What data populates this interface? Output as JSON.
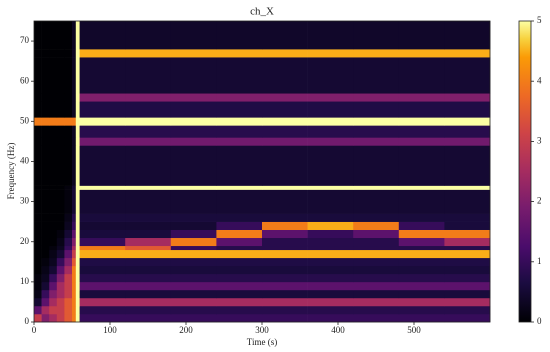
{
  "chart_data": {
    "type": "heatmap",
    "title": "ch_X",
    "xlabel": "Time (s)",
    "ylabel": "Frequency (Hz)",
    "colormap": "inferno",
    "x": [
      0,
      10,
      20,
      30,
      40,
      50,
      55,
      60,
      120,
      180,
      240,
      300,
      360,
      420,
      480,
      540,
      600
    ],
    "y": [
      0,
      2,
      4,
      6,
      8,
      10,
      12,
      14,
      16,
      18,
      19,
      21,
      23,
      25,
      27,
      33,
      34,
      44,
      46,
      49,
      51,
      55,
      57,
      66,
      68,
      75
    ],
    "values": [
      [
        3,
        2,
        2.5,
        3,
        3.5,
        4,
        5,
        1,
        1,
        1,
        1,
        1,
        1,
        1,
        1,
        1
      ],
      [
        1.5,
        2.5,
        3,
        3,
        3.5,
        4,
        5,
        0.8,
        0.8,
        0.8,
        0.8,
        0.8,
        0.8,
        0.8,
        0.8,
        0.8
      ],
      [
        0.5,
        1.5,
        2.5,
        3,
        3.5,
        4,
        5,
        2.5,
        2.5,
        2.5,
        2.5,
        2.5,
        2.5,
        2.5,
        2.5,
        2.5
      ],
      [
        0.2,
        1,
        2,
        2.5,
        3,
        4,
        5,
        0.6,
        0.6,
        0.6,
        0.6,
        0.6,
        0.6,
        0.6,
        0.6,
        0.6
      ],
      [
        0.1,
        0.5,
        1.5,
        2.5,
        3,
        4,
        5,
        1.5,
        1.5,
        1.5,
        1.5,
        1.5,
        1.5,
        1.5,
        1.5,
        1.5
      ],
      [
        0.1,
        0.3,
        1,
        2,
        3,
        4,
        5,
        0.8,
        0.8,
        0.8,
        0.8,
        0.8,
        0.8,
        0.8,
        0.8,
        0.8
      ],
      [
        0,
        0.2,
        0.5,
        1.5,
        2.5,
        4,
        5,
        0.6,
        0.6,
        0.6,
        0.6,
        0.6,
        0.6,
        0.6,
        0.6,
        0.6
      ],
      [
        0,
        0.1,
        0.3,
        1,
        2,
        3.5,
        5,
        0.7,
        0.7,
        0.7,
        0.7,
        0.7,
        0.7,
        0.7,
        0.7,
        0.7
      ],
      [
        0,
        0,
        0.2,
        0.5,
        1.5,
        3,
        5,
        4.5,
        4.5,
        4.5,
        4.5,
        4.5,
        4.5,
        4.5,
        4.5,
        4.5
      ],
      [
        0,
        0,
        0.1,
        0.3,
        1,
        2.5,
        5,
        4,
        3.5,
        1,
        0.8,
        0.8,
        0.8,
        0.8,
        0.8,
        0.8
      ],
      [
        0,
        0,
        0,
        0.2,
        0.8,
        2,
        5,
        1,
        2.5,
        4,
        1.5,
        0.8,
        0.8,
        0.8,
        1.5,
        2.5
      ],
      [
        0,
        0,
        0,
        0.1,
        0.5,
        1.5,
        5,
        0.6,
        0.6,
        1,
        4,
        1.5,
        1,
        1.5,
        4,
        4
      ],
      [
        0,
        0,
        0,
        0,
        0.3,
        1,
        5,
        0.5,
        0.5,
        0.5,
        1,
        4,
        4.5,
        4,
        1,
        0.6
      ],
      [
        0,
        0,
        0,
        0,
        0.2,
        0.8,
        5,
        0.6,
        0.6,
        0.6,
        0.6,
        0.6,
        0.6,
        0.6,
        0.6,
        0.6
      ],
      [
        0,
        0,
        0,
        0,
        0.1,
        0.5,
        5,
        0.5,
        0.5,
        0.5,
        0.5,
        0.5,
        0.5,
        0.5,
        0.5,
        0.5
      ],
      [
        0,
        0,
        0,
        0,
        0.1,
        0.5,
        5,
        5,
        5,
        5,
        5,
        5,
        5,
        5,
        5,
        5
      ],
      [
        0,
        0,
        0,
        0,
        0,
        0.3,
        5,
        0.5,
        0.5,
        0.5,
        0.5,
        0.5,
        0.5,
        0.5,
        0.5,
        0.5
      ],
      [
        0,
        0,
        0,
        0,
        0,
        0.3,
        5,
        1.8,
        1.8,
        1.8,
        1.8,
        1.8,
        1.8,
        1.8,
        1.8,
        1.8
      ],
      [
        0,
        0,
        0,
        0,
        0,
        0.3,
        5,
        0.8,
        0.8,
        0.8,
        0.8,
        0.8,
        0.8,
        0.8,
        0.8,
        0.8
      ],
      [
        4,
        4,
        4,
        4,
        4,
        4,
        5,
        5,
        5,
        5,
        5,
        5,
        5,
        5,
        5,
        5
      ],
      [
        0,
        0,
        0,
        0,
        0,
        0.3,
        5,
        0.7,
        0.7,
        0.7,
        0.7,
        0.7,
        0.7,
        0.7,
        0.7,
        0.7
      ],
      [
        0,
        0,
        0,
        0,
        0,
        0.3,
        5,
        2,
        2,
        2,
        2,
        2,
        2,
        2,
        2,
        2
      ],
      [
        0,
        0,
        0,
        0,
        0,
        0.3,
        5,
        0.5,
        0.5,
        0.5,
        0.5,
        0.5,
        0.5,
        0.5,
        0.5,
        0.5
      ],
      [
        0,
        0,
        0,
        0,
        0,
        0.3,
        5,
        4.5,
        4.5,
        4.5,
        4.5,
        4.5,
        4.5,
        4.5,
        4.5,
        4.5
      ],
      [
        0,
        0,
        0,
        0,
        0,
        0.3,
        5,
        0.4,
        0.4,
        0.4,
        0.4,
        0.4,
        0.4,
        0.4,
        0.4,
        0.4
      ]
    ],
    "xlim": [
      0,
      600
    ],
    "ylim": [
      0,
      75
    ],
    "xticks": [
      0,
      100,
      200,
      300,
      400,
      500
    ],
    "yticks": [
      0,
      10,
      20,
      30,
      40,
      50,
      60,
      70
    ],
    "clim": [
      0,
      5
    ],
    "cticks": [
      0,
      1,
      2,
      3,
      4,
      5
    ]
  }
}
